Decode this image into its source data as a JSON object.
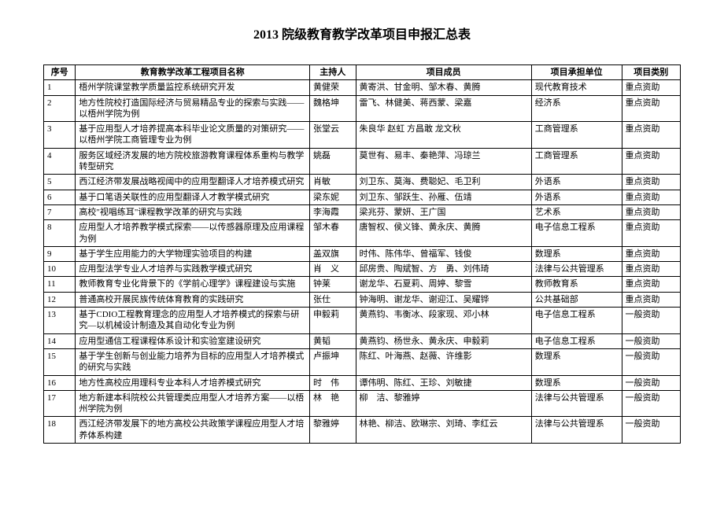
{
  "title": "2013 院级教育教学改革项目申报汇总表",
  "columns": [
    "序号",
    "教育教学改革工程项目名称",
    "主持人",
    "项目成员",
    "项目承担单位",
    "项目类别"
  ],
  "rows": [
    [
      "1",
      "梧州学院课堂教学质量监控系统研究开发",
      "黄健荣",
      "黄寄洪、甘金明、邹木春、黄腾",
      "现代教育技术",
      "重点资助"
    ],
    [
      "2",
      "地方性院校打造国际经济与贸易精品专业的探索与实践——以梧州学院为例",
      "魏格坤",
      "雷飞、林健美、蒋西蒙、梁嘉",
      "经济系",
      "重点资助"
    ],
    [
      "3",
      "基于应用型人才培养提高本科毕业论文质量的对策研究——以梧州学院工商管理专业为例",
      "张堂云",
      "朱良华 赵虹 方昌敢 龙文秋",
      "工商管理系",
      "重点资助"
    ],
    [
      "4",
      "服务区域经济发展的地方院校旅游教育课程体系重构与教学转型研究",
      "姚磊",
      "莫世有、易丰、秦艳萍、冯琼兰",
      "工商管理系",
      "重点资助"
    ],
    [
      "5",
      "西江经济带发展战略视阈中的应用型翻译人才培养模式研究",
      "肖敏",
      "刘卫东、莫海、费聪妃、毛卫利",
      "外语系",
      "重点资助"
    ],
    [
      "6",
      "基于口笔语关联性的应用型翻译人才教学模式研究",
      "梁东妮",
      "刘卫东、邹跃生、孙雁、伍靖",
      "外语系",
      "重点资助"
    ],
    [
      "7",
      "高校\"视唱练耳\"课程教学改革的研究与实践",
      "李海霞",
      "梁兆芬、蒙妍、王广国",
      "艺术系",
      "重点资助"
    ],
    [
      "8",
      "应用型人才培养教学模式探索——以传感器原理及应用课程为例",
      "邹木春",
      "唐智权、侯义锋、黄永庆、黄腾",
      "电子信息工程系",
      "重点资助"
    ],
    [
      "9",
      "基于学生应用能力的大学物理实验项目的构建",
      "盖双旗",
      "时伟、陈伟华、曾福军、钱俊",
      "数理系",
      "重点资助"
    ],
    [
      "10",
      "应用型法学专业人才培养与实践教学模式研究",
      "肖　义",
      "邱房贵、陶斌智、方　勇、刘伟琦",
      "法律与公共管理系",
      "重点资助"
    ],
    [
      "11",
      "教师教育专业化背景下的《学前心理学》课程建设与实施",
      "钟莱",
      "谢龙华、石夏莉、周婷、黎雪",
      "教师教育系",
      "重点资助"
    ],
    [
      "12",
      "普通高校开展民族传统体育教育的实践研究",
      "张仕",
      "钟海明、谢龙华、谢迎江、吴耀铧",
      "公共基础部",
      "重点资助"
    ],
    [
      "13",
      "基于CDIO工程教育理念的应用型人才培养模式的探索与研究—以机械设计制造及其自动化专业为例",
      "申毅莉",
      "黄燕钧、韦衡冰、段家现、邓小林",
      "电子信息工程系",
      "一般资助"
    ],
    [
      "14",
      "应用型通信工程课程体系设计和实验室建设研究",
      "黄韬",
      "黄燕钧、杨世永、黄永庆、申毅莉",
      "电子信息工程系",
      "一般资助"
    ],
    [
      "15",
      "基于学生创新与创业能力培养为目标的应用型人才培养模式的研究与实践",
      "卢振坤",
      "陈红、叶海燕、赵薇、许维影",
      "数理系",
      "一般资助"
    ],
    [
      "16",
      "地方性高校应用理科专业本科人才培养模式研究",
      "时　伟",
      "谭伟明、陈红、王珍、刘敏捷",
      "数理系",
      "一般资助"
    ],
    [
      "17",
      "地方新建本科院校公共管理类应用型人才培养方案——以梧州学院为例",
      "林　艳",
      "柳　洁、黎雅婷",
      "法律与公共管理系",
      "一般资助"
    ],
    [
      "18",
      "西江经济带发展下的地方高校公共政策学课程应用型人才培养体系构建",
      "黎雅婷",
      "林艳、柳洁、欧琳宗、刘琦、李红云",
      "法律与公共管理系",
      "一般资助"
    ]
  ]
}
